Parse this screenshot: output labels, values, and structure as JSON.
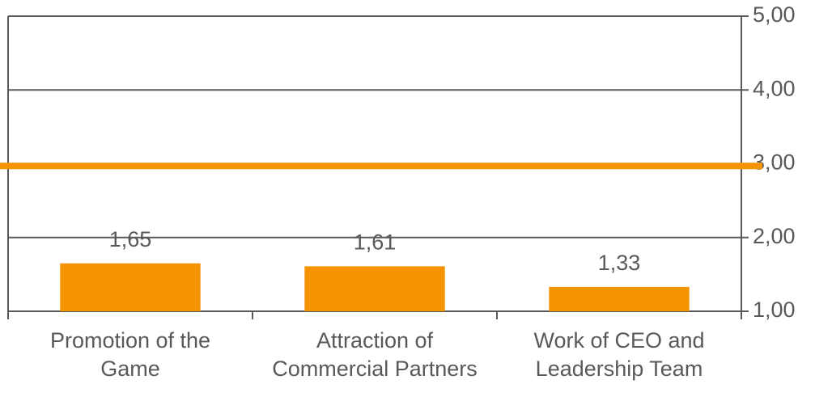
{
  "chart_data": {
    "type": "bar",
    "categories": [
      "Promotion of the\nGame",
      "Attraction of\nCommercial Partners",
      "Work of CEO and\nLeadership Team"
    ],
    "values": [
      1.65,
      1.61,
      1.33
    ],
    "value_labels": [
      "1,65",
      "1,61",
      "1,33"
    ],
    "color": "#f59300",
    "ylim": [
      1,
      5
    ],
    "yticks": [
      {
        "value": 1,
        "label": "1,00"
      },
      {
        "value": 2,
        "label": "2,00"
      },
      {
        "value": 3,
        "label": "3,00"
      },
      {
        "value": 4,
        "label": "4,00"
      },
      {
        "value": 5,
        "label": "5,00"
      }
    ],
    "y_axis_side": "right",
    "grid": true,
    "reference_line": {
      "value": 2.97,
      "color": "#f59300"
    }
  }
}
